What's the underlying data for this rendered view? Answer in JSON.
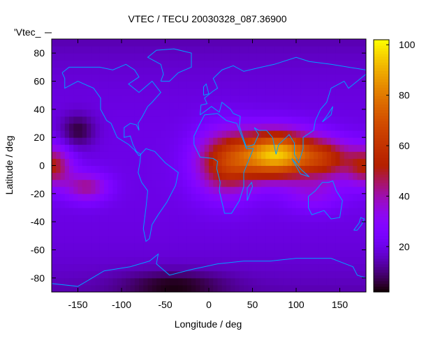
{
  "chart_data": {
    "type": "heatmap",
    "title": "VTEC / TECU 20030328_087.36900",
    "key_label": "'Vtec_",
    "xlabel": "Longitude / deg",
    "ylabel": "Latitude / deg",
    "xlim": [
      -180,
      180
    ],
    "ylim": [
      -90,
      90
    ],
    "xticks": [
      -150,
      -100,
      -50,
      0,
      50,
      100,
      150
    ],
    "yticks": [
      -80,
      -60,
      -40,
      -20,
      0,
      20,
      40,
      60,
      80
    ],
    "cbrange": [
      2,
      102
    ],
    "cbticks": [
      20,
      40,
      60,
      80,
      100
    ],
    "grid_step_deg": [
      5,
      5
    ],
    "field_model": {
      "base": 20,
      "components": [
        {
          "lon": 78,
          "lat": 8,
          "slon": 42,
          "slat": 16,
          "amp": 72
        },
        {
          "lon": 20,
          "lat": 2,
          "slon": 35,
          "slat": 22,
          "amp": 38
        },
        {
          "lon": 135,
          "lat": 5,
          "slon": 30,
          "slat": 14,
          "amp": 30
        },
        {
          "lon": -180,
          "lat": 0,
          "slon": 22,
          "slat": 14,
          "amp": 32
        },
        {
          "lon": 180,
          "lat": 0,
          "slon": 22,
          "slat": 14,
          "amp": 30
        },
        {
          "lon": -140,
          "lat": -15,
          "slon": 25,
          "slat": 10,
          "amp": 22
        },
        {
          "lon": -150,
          "lat": 25,
          "slon": 20,
          "slat": 12,
          "amp": -14
        },
        {
          "lon": -40,
          "lat": -85,
          "slon": 60,
          "slat": 10,
          "amp": -12
        },
        {
          "lon": 120,
          "lat": -20,
          "slon": 35,
          "slat": 12,
          "amp": 12
        }
      ]
    },
    "coastline_color": "#00a0ff",
    "coastlines": [
      [
        [
          -168,
          66
        ],
        [
          -160,
          70
        ],
        [
          -140,
          70
        ],
        [
          -125,
          70
        ],
        [
          -110,
          68
        ],
        [
          -95,
          72
        ],
        [
          -85,
          68
        ],
        [
          -80,
          63
        ],
        [
          -92,
          58
        ],
        [
          -80,
          52
        ],
        [
          -65,
          60
        ],
        [
          -55,
          52
        ],
        [
          -65,
          45
        ],
        [
          -70,
          42
        ],
        [
          -76,
          35
        ],
        [
          -81,
          30
        ],
        [
          -80,
          25
        ],
        [
          -83,
          29
        ],
        [
          -90,
          30
        ],
        [
          -97,
          27
        ],
        [
          -97,
          20
        ],
        [
          -90,
          21
        ],
        [
          -87,
          15
        ],
        [
          -83,
          10
        ],
        [
          -78,
          8
        ],
        [
          -80,
          7
        ],
        [
          -85,
          11
        ],
        [
          -92,
          15
        ],
        [
          -105,
          20
        ],
        [
          -112,
          30
        ],
        [
          -117,
          32
        ],
        [
          -124,
          40
        ],
        [
          -124,
          48
        ],
        [
          -132,
          55
        ],
        [
          -150,
          60
        ],
        [
          -165,
          55
        ],
        [
          -165,
          62
        ],
        [
          -168,
          66
        ]
      ],
      [
        [
          -78,
          8
        ],
        [
          -72,
          12
        ],
        [
          -62,
          10
        ],
        [
          -50,
          2
        ],
        [
          -35,
          -5
        ],
        [
          -38,
          -14
        ],
        [
          -48,
          -26
        ],
        [
          -58,
          -35
        ],
        [
          -65,
          -42
        ],
        [
          -68,
          -52
        ],
        [
          -72,
          -54
        ],
        [
          -75,
          -45
        ],
        [
          -72,
          -30
        ],
        [
          -70,
          -18
        ],
        [
          -77,
          -12
        ],
        [
          -81,
          -5
        ],
        [
          -79,
          2
        ],
        [
          -78,
          8
        ]
      ],
      [
        [
          -55,
          60
        ],
        [
          -45,
          60
        ],
        [
          -35,
          66
        ],
        [
          -20,
          70
        ],
        [
          -20,
          80
        ],
        [
          -40,
          83
        ],
        [
          -60,
          82
        ],
        [
          -70,
          77
        ],
        [
          -55,
          72
        ],
        [
          -52,
          65
        ],
        [
          -55,
          60
        ]
      ],
      [
        [
          -17,
          15
        ],
        [
          -10,
          6
        ],
        [
          5,
          5
        ],
        [
          10,
          3
        ],
        [
          9,
          -2
        ],
        [
          13,
          -12
        ],
        [
          12,
          -18
        ],
        [
          18,
          -34
        ],
        [
          26,
          -34
        ],
        [
          35,
          -25
        ],
        [
          40,
          -15
        ],
        [
          40,
          -5
        ],
        [
          51,
          12
        ],
        [
          43,
          12
        ],
        [
          32,
          30
        ],
        [
          20,
          32
        ],
        [
          10,
          37
        ],
        [
          -5,
          36
        ],
        [
          -10,
          30
        ],
        [
          -17,
          21
        ],
        [
          -17,
          15
        ]
      ],
      [
        [
          -10,
          36
        ],
        [
          -9,
          43
        ],
        [
          -2,
          44
        ],
        [
          -5,
          48
        ],
        [
          5,
          53
        ],
        [
          10,
          55
        ],
        [
          8,
          58
        ],
        [
          5,
          62
        ],
        [
          15,
          68
        ],
        [
          28,
          71
        ],
        [
          40,
          67
        ],
        [
          60,
          70
        ],
        [
          75,
          72
        ],
        [
          100,
          77
        ],
        [
          115,
          74
        ],
        [
          140,
          72
        ],
        [
          160,
          70
        ],
        [
          180,
          68
        ],
        [
          180,
          65
        ],
        [
          170,
          60
        ],
        [
          160,
          55
        ],
        [
          155,
          60
        ],
        [
          140,
          55
        ],
        [
          135,
          45
        ],
        [
          128,
          40
        ],
        [
          122,
          32
        ],
        [
          120,
          25
        ],
        [
          108,
          20
        ],
        [
          108,
          12
        ],
        [
          103,
          2
        ],
        [
          98,
          8
        ],
        [
          98,
          16
        ],
        [
          92,
          22
        ],
        [
          80,
          15
        ],
        [
          77,
          8
        ],
        [
          73,
          20
        ],
        [
          66,
          25
        ],
        [
          57,
          25
        ],
        [
          52,
          27
        ],
        [
          57,
          22
        ],
        [
          52,
          15
        ],
        [
          43,
          13
        ],
        [
          35,
          28
        ],
        [
          36,
          35
        ],
        [
          28,
          37
        ],
        [
          25,
          40
        ],
        [
          15,
          45
        ],
        [
          12,
          38
        ],
        [
          3,
          42
        ],
        [
          -10,
          36
        ]
      ],
      [
        [
          114,
          -22
        ],
        [
          122,
          -18
        ],
        [
          130,
          -12
        ],
        [
          137,
          -12
        ],
        [
          142,
          -11
        ],
        [
          146,
          -18
        ],
        [
          153,
          -25
        ],
        [
          150,
          -37
        ],
        [
          140,
          -38
        ],
        [
          132,
          -32
        ],
        [
          118,
          -35
        ],
        [
          114,
          -30
        ],
        [
          114,
          -22
        ]
      ],
      [
        [
          -180,
          -84
        ],
        [
          -150,
          -86
        ],
        [
          -120,
          -75
        ],
        [
          -90,
          -72
        ],
        [
          -68,
          -68
        ],
        [
          -58,
          -63
        ],
        [
          -60,
          -70
        ],
        [
          -45,
          -78
        ],
        [
          -20,
          -74
        ],
        [
          10,
          -70
        ],
        [
          40,
          -68
        ],
        [
          70,
          -68
        ],
        [
          100,
          -66
        ],
        [
          140,
          -66
        ],
        [
          165,
          -72
        ],
        [
          170,
          -78
        ],
        [
          180,
          -80
        ]
      ],
      [
        [
          166,
          -46
        ],
        [
          172,
          -41
        ],
        [
          174,
          -37
        ],
        [
          178,
          -38
        ],
        [
          175,
          -42
        ],
        [
          170,
          -46
        ],
        [
          166,
          -46
        ]
      ],
      [
        [
          44,
          -25
        ],
        [
          50,
          -15
        ],
        [
          49,
          -12
        ],
        [
          44,
          -16
        ],
        [
          44,
          -25
        ]
      ],
      [
        [
          95,
          5
        ],
        [
          105,
          -6
        ],
        [
          115,
          -8
        ],
        [
          106,
          -3
        ],
        [
          95,
          5
        ]
      ],
      [
        [
          -6,
          50
        ],
        [
          0,
          51
        ],
        [
          -3,
          58
        ],
        [
          -6,
          56
        ],
        [
          -6,
          50
        ]
      ],
      [
        [
          130,
          31
        ],
        [
          140,
          36
        ],
        [
          142,
          42
        ],
        [
          136,
          36
        ],
        [
          130,
          31
        ]
      ]
    ]
  }
}
